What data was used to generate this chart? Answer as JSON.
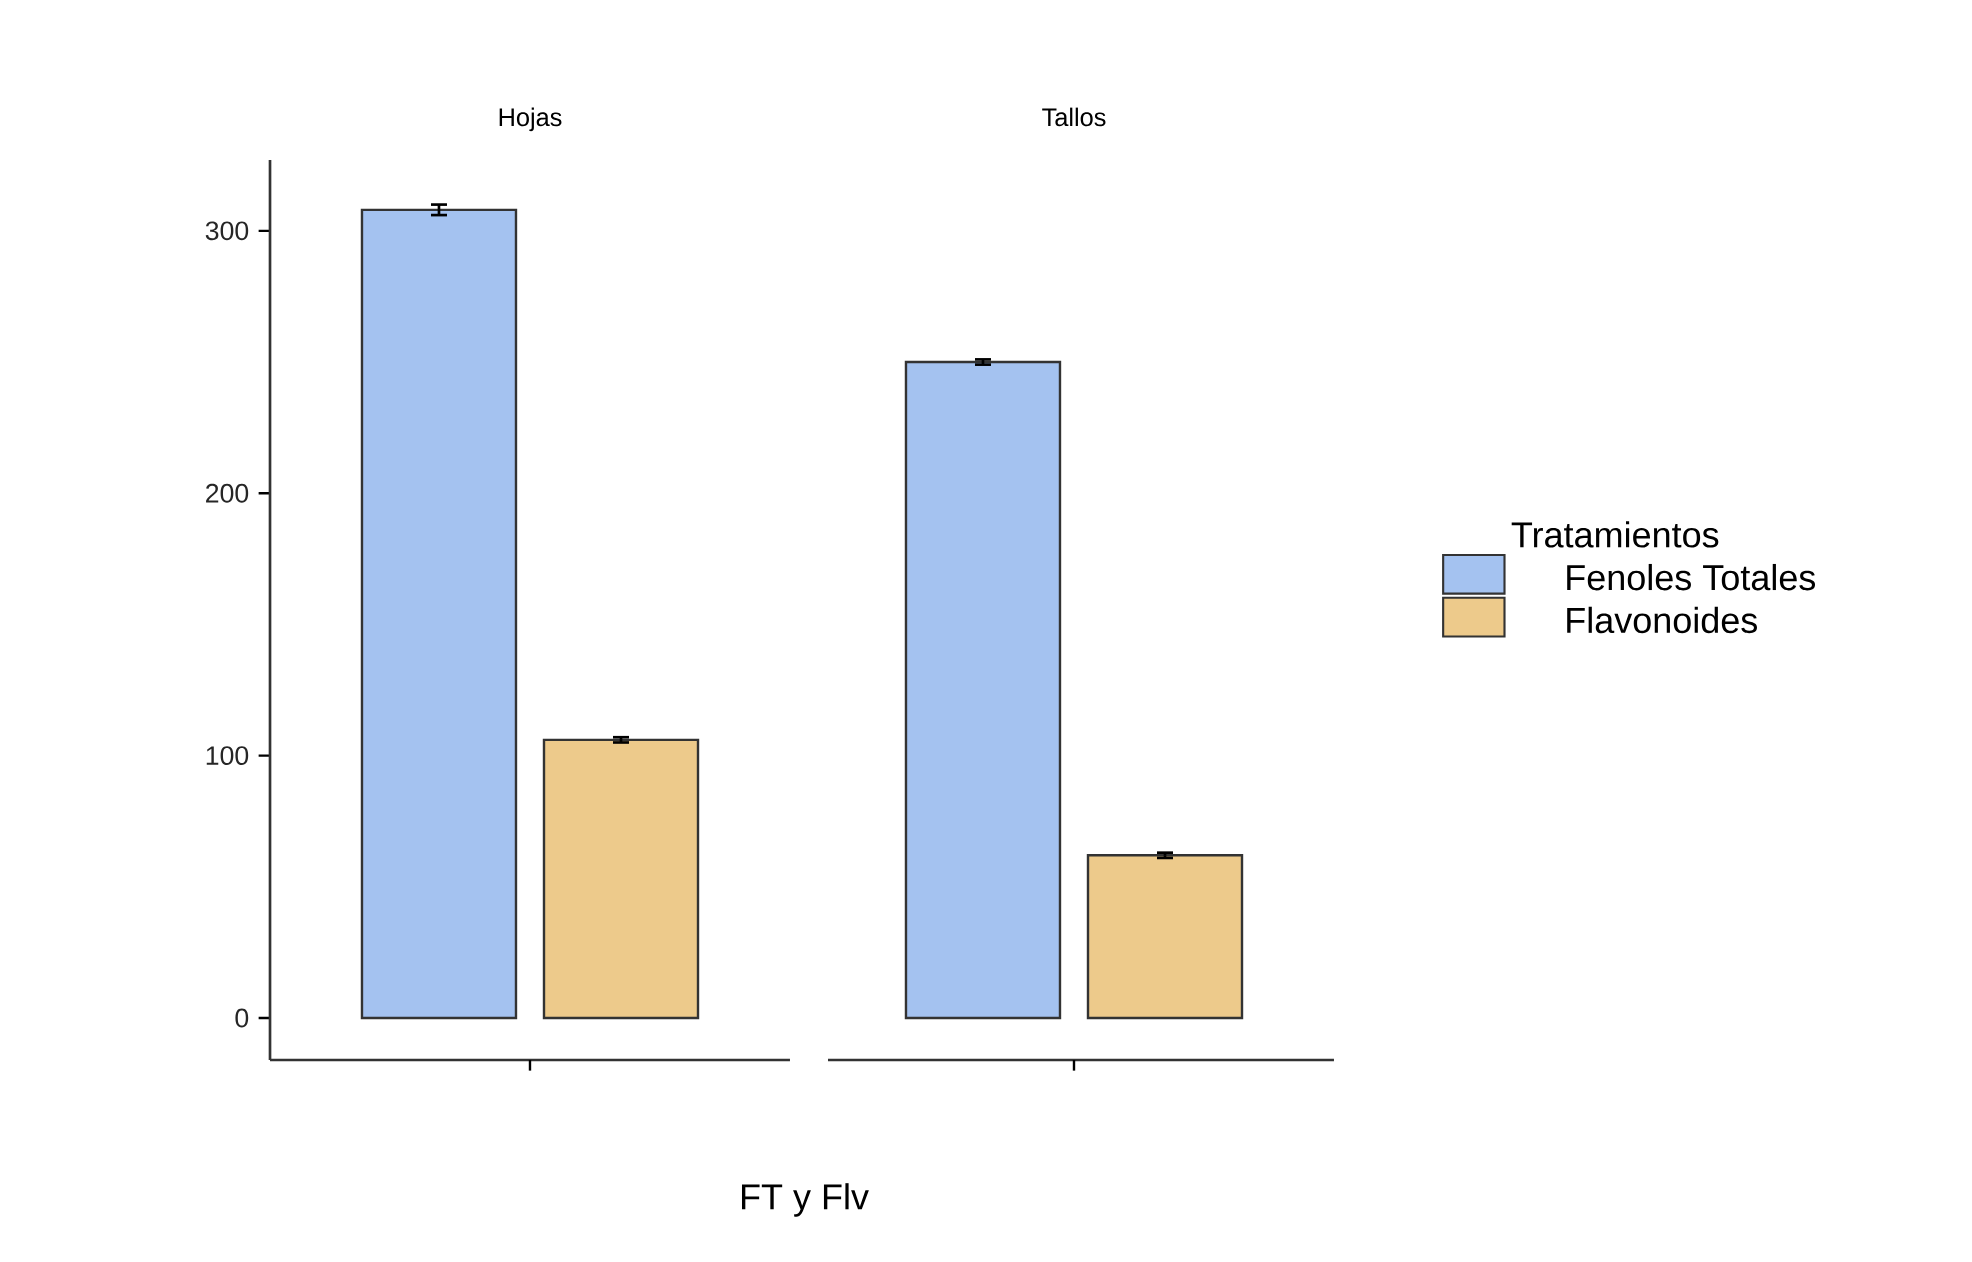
{
  "chart_data": {
    "type": "bar",
    "xlabel": "FT y Flv",
    "categories": [
      "Hojas",
      "Tallos"
    ],
    "ylim": [
      -16,
      327
    ],
    "yticks": [
      0,
      100,
      200,
      300
    ],
    "legend": "right",
    "legend_title": "Tratamientos",
    "series": [
      {
        "name": "Fenoles Totales",
        "color": "#a4c2f0",
        "values": [
          308,
          250
        ],
        "errors": [
          2,
          1
        ]
      },
      {
        "name": "Flavonoides",
        "color": "#edca8b",
        "values": [
          106,
          62
        ],
        "errors": [
          1,
          1
        ]
      }
    ]
  }
}
